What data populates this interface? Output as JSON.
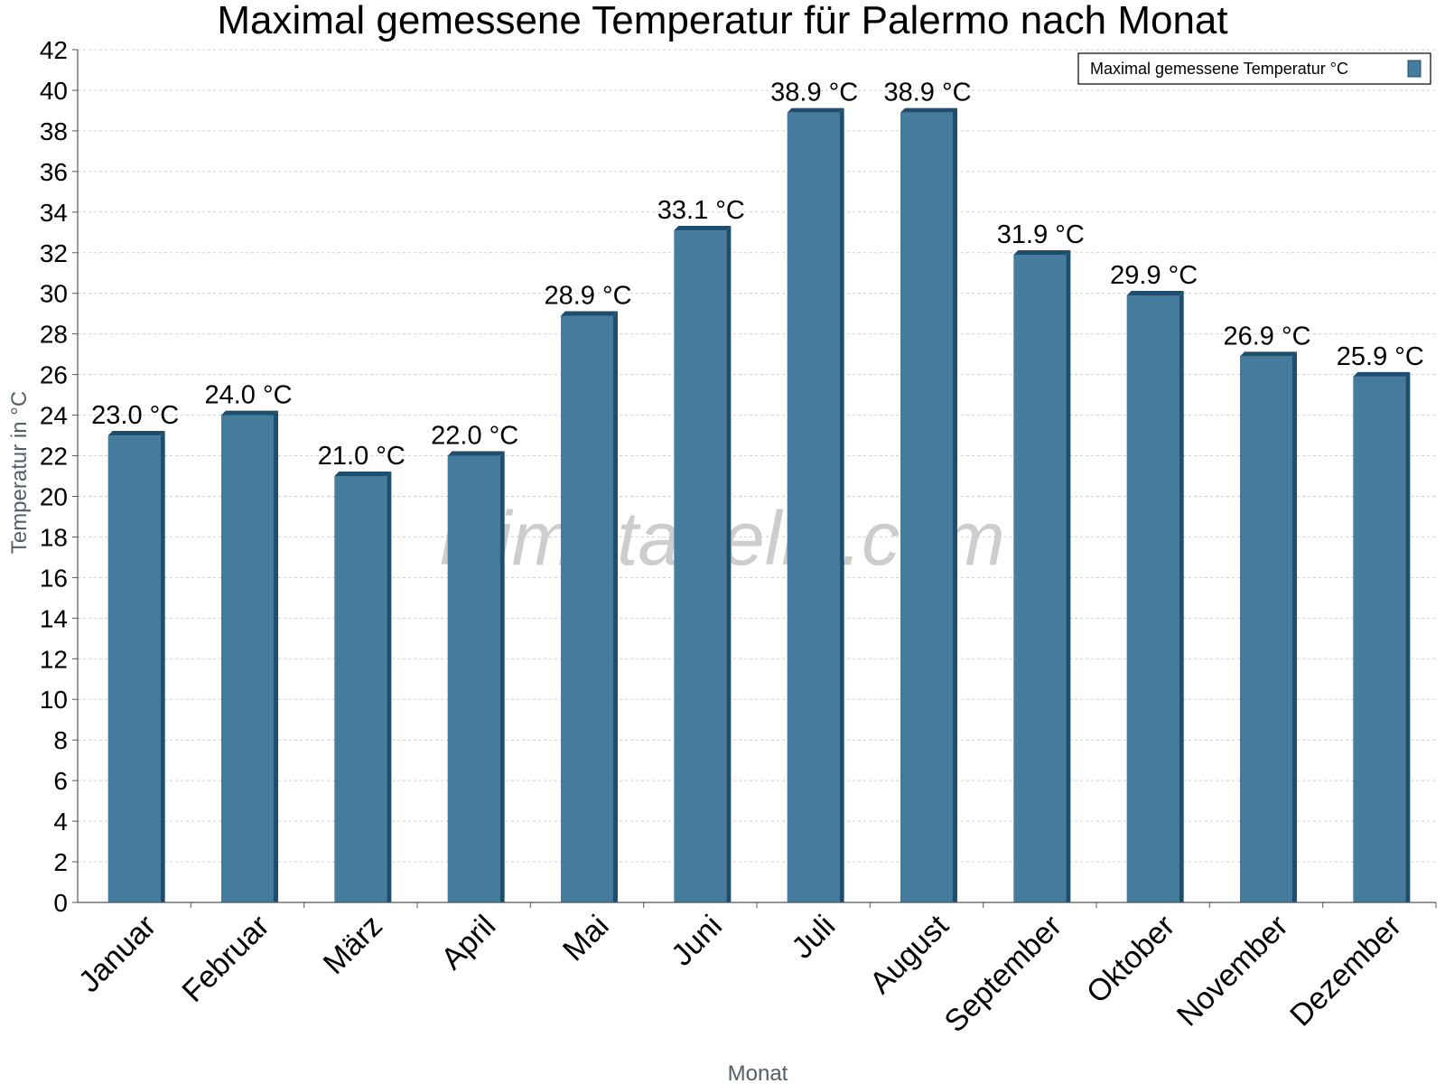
{
  "chart_data": {
    "type": "bar",
    "title": "Maximal gemessene Temperatur für Palermo nach Monat",
    "xlabel": "Monat",
    "ylabel": "Temperatur in °C",
    "ylim": [
      0,
      42
    ],
    "ytick_step": 2,
    "categories": [
      "Januar",
      "Februar",
      "März",
      "April",
      "Mai",
      "Juni",
      "Juli",
      "August",
      "September",
      "Oktober",
      "November",
      "Dezember"
    ],
    "series": [
      {
        "name": "Maximal gemessene Temperatur °C",
        "values": [
          23.0,
          24.0,
          21.0,
          22.0,
          28.9,
          33.1,
          38.9,
          38.9,
          31.9,
          29.9,
          26.9,
          25.9
        ],
        "labels": [
          "23.0 °C",
          "24.0 °C",
          "21.0 °C",
          "22.0 °C",
          "28.9 °C",
          "33.1 °C",
          "38.9 °C",
          "38.9 °C",
          "31.9 °C",
          "29.9 °C",
          "26.9 °C",
          "25.9 °C"
        ]
      }
    ],
    "grid": true,
    "legend_position": "top-right",
    "colors": {
      "bar": "#457b9d",
      "bar_shade": "#1d4e6e"
    },
    "watermark": "klimatabelle.com"
  }
}
